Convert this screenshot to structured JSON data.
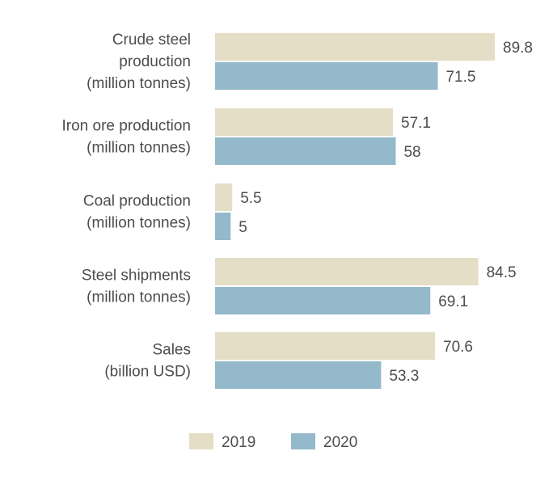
{
  "chart_data": {
    "type": "bar",
    "orientation": "horizontal",
    "categories": [
      [
        "Crude steel",
        "production",
        "(million tonnes)"
      ],
      [
        "Iron ore production",
        "(million tonnes)"
      ],
      [
        "Coal production",
        "(million tonnes)"
      ],
      [
        "Steel shipments",
        "(million tonnes)"
      ],
      [
        "Sales",
        "(billion USD)"
      ]
    ],
    "series": [
      {
        "name": "2019",
        "color": "#e4dec6",
        "values": [
          89.8,
          57.1,
          5.5,
          84.5,
          70.6
        ]
      },
      {
        "name": "2020",
        "color": "#93b9ca",
        "values": [
          71.5,
          58,
          5,
          69.1,
          53.3
        ]
      }
    ],
    "title": "",
    "xlabel": "",
    "ylabel": "",
    "xlim": [
      0,
      89.8
    ],
    "grid": false,
    "legend": "bottom-center"
  }
}
